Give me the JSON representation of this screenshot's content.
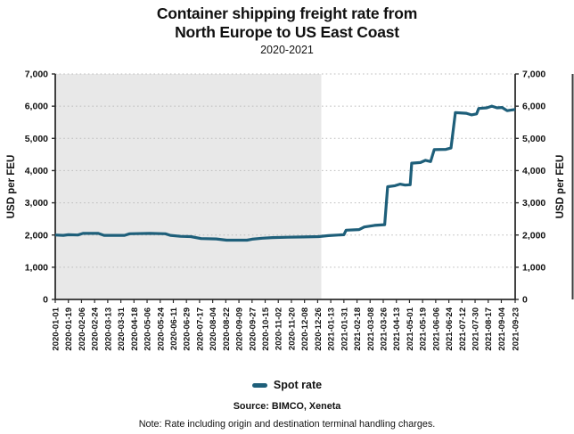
{
  "header": {
    "title_lines": [
      "Container shipping freight rate from",
      "North Europe to US East Coast"
    ],
    "subtitle": "2020-2021"
  },
  "legend": {
    "label": "Spot rate"
  },
  "footer": {
    "source": "Source: BIMCO, Xeneta",
    "note": "Note: Rate including origin and destination terminal handling charges."
  },
  "colors": {
    "line": "#1e5f7a",
    "shade": "#e8e8e8",
    "grid": "#bcbcbc",
    "axis": "#2d2d2d",
    "text": "#111111"
  },
  "chart_data": {
    "type": "line",
    "title": "Container shipping freight rate from North Europe to US East Coast",
    "subtitle": "2020-2021",
    "xlabel": "",
    "ylabel": "USD per FEU",
    "ylabel_right": "USD per FEU",
    "ylim": [
      0,
      7000
    ],
    "y_ticks": [
      0,
      1000,
      2000,
      3000,
      4000,
      5000,
      6000,
      7000
    ],
    "y_tick_labels": [
      "0",
      "1,000",
      "2,000",
      "3,000",
      "4,000",
      "5,000",
      "6,000",
      "7,000"
    ],
    "x_range": [
      "2020-01-01",
      "2021-09-23"
    ],
    "x_tick_labels": [
      "2020-01-01",
      "2020-01-19",
      "2020-02-06",
      "2020-02-24",
      "2020-03-13",
      "2020-03-31",
      "2020-04-18",
      "2020-05-06",
      "2020-05-24",
      "2020-06-11",
      "2020-06-29",
      "2020-07-17",
      "2020-08-04",
      "2020-08-22",
      "2020-09-09",
      "2020-09-27",
      "2020-10-15",
      "2020-11-02",
      "2020-11-20",
      "2020-12-08",
      "2020-12-26",
      "2021-01-13",
      "2021-01-31",
      "2021-02-18",
      "2021-03-08",
      "2021-03-26",
      "2021-04-13",
      "2021-05-01",
      "2021-05-19",
      "2021-06-06",
      "2021-06-24",
      "2021-07-12",
      "2021-07-30",
      "2021-08-17",
      "2021-09-04",
      "2021-09-23"
    ],
    "grid": "horizontal-dotted",
    "legend_position": "bottom-center",
    "shaded_region": {
      "from": "2020-01-01",
      "to": "2020-12-31",
      "color": "#e8e8e8"
    },
    "series": [
      {
        "name": "Spot rate",
        "color": "#1e5f7a",
        "points": [
          [
            "2020-01-01",
            2000
          ],
          [
            "2020-01-12",
            1990
          ],
          [
            "2020-01-19",
            2010
          ],
          [
            "2020-02-01",
            2000
          ],
          [
            "2020-02-08",
            2050
          ],
          [
            "2020-02-29",
            2050
          ],
          [
            "2020-03-08",
            1990
          ],
          [
            "2020-04-05",
            1990
          ],
          [
            "2020-04-12",
            2040
          ],
          [
            "2020-05-10",
            2050
          ],
          [
            "2020-05-31",
            2040
          ],
          [
            "2020-06-07",
            1990
          ],
          [
            "2020-06-21",
            1960
          ],
          [
            "2020-07-05",
            1950
          ],
          [
            "2020-07-19",
            1890
          ],
          [
            "2020-08-09",
            1880
          ],
          [
            "2020-08-23",
            1840
          ],
          [
            "2020-09-20",
            1840
          ],
          [
            "2020-09-27",
            1870
          ],
          [
            "2020-10-11",
            1900
          ],
          [
            "2020-10-25",
            1920
          ],
          [
            "2020-11-15",
            1930
          ],
          [
            "2020-12-06",
            1940
          ],
          [
            "2020-12-27",
            1950
          ],
          [
            "2021-01-10",
            1980
          ],
          [
            "2021-01-24",
            2000
          ],
          [
            "2021-01-31",
            2010
          ],
          [
            "2021-02-03",
            2150
          ],
          [
            "2021-02-21",
            2170
          ],
          [
            "2021-02-28",
            2250
          ],
          [
            "2021-03-14",
            2300
          ],
          [
            "2021-03-28",
            2320
          ],
          [
            "2021-04-01",
            3500
          ],
          [
            "2021-04-11",
            3530
          ],
          [
            "2021-04-18",
            3580
          ],
          [
            "2021-04-25",
            3550
          ],
          [
            "2021-05-02",
            3560
          ],
          [
            "2021-05-04",
            4230
          ],
          [
            "2021-05-16",
            4250
          ],
          [
            "2021-05-23",
            4320
          ],
          [
            "2021-05-30",
            4280
          ],
          [
            "2021-06-04",
            4650
          ],
          [
            "2021-06-20",
            4660
          ],
          [
            "2021-06-27",
            4700
          ],
          [
            "2021-07-03",
            5800
          ],
          [
            "2021-07-18",
            5780
          ],
          [
            "2021-07-25",
            5730
          ],
          [
            "2021-08-01",
            5760
          ],
          [
            "2021-08-04",
            5930
          ],
          [
            "2021-08-15",
            5950
          ],
          [
            "2021-08-22",
            6000
          ],
          [
            "2021-08-29",
            5950
          ],
          [
            "2021-09-05",
            5960
          ],
          [
            "2021-09-12",
            5860
          ],
          [
            "2021-09-23",
            5900
          ]
        ]
      }
    ]
  }
}
